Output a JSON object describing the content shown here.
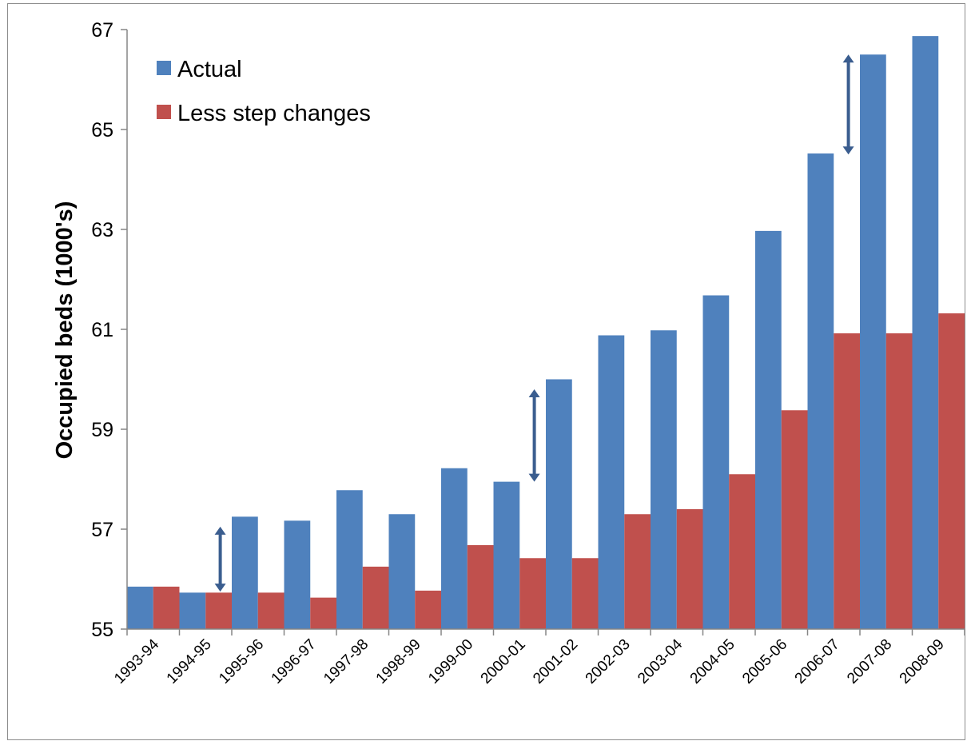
{
  "chart_data": {
    "type": "bar",
    "title": "",
    "xlabel": "",
    "ylabel": "Occupied beds (1000's)",
    "ylim": [
      55,
      67
    ],
    "yticks": [
      "55",
      "57",
      "59",
      "61",
      "63",
      "65",
      "67"
    ],
    "grid": false,
    "legend_position": "top-left",
    "categories": [
      "1993-94",
      "1994-95",
      "1995-96",
      "1996-97",
      "1997-98",
      "1998-99",
      "1999-00",
      "2000-01",
      "2001-02",
      "2002-03",
      "2003-04",
      "2004-05",
      "2005-06",
      "2006-07",
      "2007-08",
      "2008-09"
    ],
    "series": [
      {
        "name": "Actual",
        "color": "#4F81BD",
        "values": [
          55.85,
          55.73,
          57.25,
          57.17,
          57.78,
          57.3,
          58.22,
          57.95,
          60.0,
          60.88,
          60.98,
          61.68,
          62.97,
          64.52,
          66.5,
          66.87
        ]
      },
      {
        "name": "Less step changes",
        "color": "#C0504D",
        "values": [
          55.85,
          55.73,
          55.73,
          55.63,
          56.25,
          55.77,
          56.68,
          56.42,
          56.42,
          57.3,
          57.4,
          58.1,
          59.38,
          60.92,
          60.92,
          61.32
        ]
      }
    ],
    "annotations": [
      {
        "type": "double-arrow",
        "category": "1994-95",
        "from": 55.75,
        "to": 57.05,
        "color": "#3A5D8F"
      },
      {
        "type": "double-arrow",
        "category": "2000-01",
        "from": 57.95,
        "to": 59.8,
        "color": "#3A5D8F"
      },
      {
        "type": "double-arrow",
        "category": "2006-07",
        "from": 64.5,
        "to": 66.5,
        "color": "#3A5D8F"
      }
    ]
  }
}
